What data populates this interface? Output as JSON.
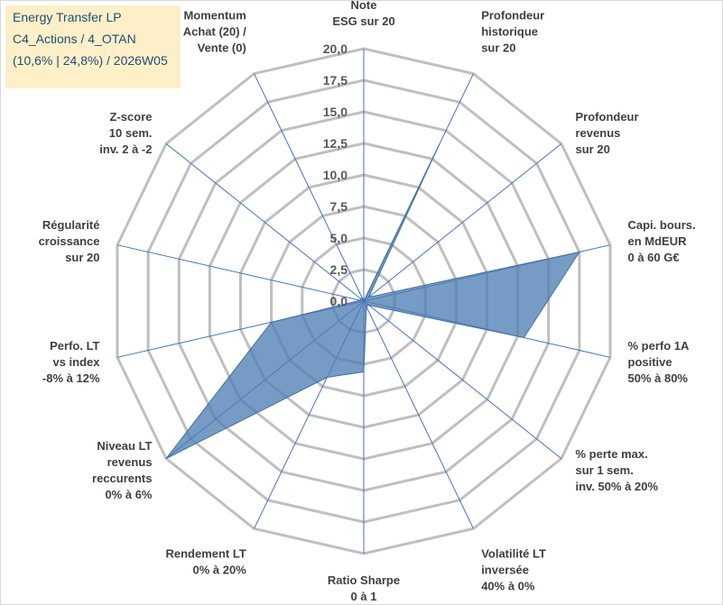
{
  "title_box": {
    "line1": "Energy Transfer LP",
    "line2": "C4_Actions / 4_OTAN",
    "line3": "(10,6% | 24,8%) / 2026W05"
  },
  "chart_data": {
    "type": "radar",
    "title": "Energy Transfer LP",
    "ylim": [
      0,
      20
    ],
    "tick_step": 2.5,
    "tick_labels": [
      "0,0",
      "2,5",
      "5,0",
      "7,5",
      "10,0",
      "12,5",
      "15,0",
      "17,5",
      "20,0"
    ],
    "categories": [
      [
        "Note",
        "ESG sur 20"
      ],
      [
        "Profondeur",
        "historique",
        "sur 20"
      ],
      [
        "Profondeur",
        "revenus",
        "sur 20"
      ],
      [
        "Capi. bours.",
        "en MdEUR",
        "0 à 60 G€"
      ],
      [
        "% perfo 1A",
        "positive",
        "50% à 80%"
      ],
      [
        "% perte max.",
        "sur 1 sem.",
        "inv. 50% à 20%"
      ],
      [
        "Volatilité LT",
        "inversée",
        "40% à 0%"
      ],
      [
        "Ratio Sharpe",
        "0 à 1"
      ],
      [
        "Rendement LT",
        "0% à 20%"
      ],
      [
        "Niveau LT",
        "revenus",
        "reccurents",
        "0% à 6%"
      ],
      [
        "Perfo. LT",
        "vs index",
        "-8% à 12%"
      ],
      [
        "Régularité",
        "croissance",
        "sur 20"
      ],
      [
        "Z-score",
        "10 sem.",
        "inv. 2 à -2"
      ],
      [
        "Momentum",
        "Achat (20) /",
        "Vente (0)"
      ]
    ],
    "series": [
      {
        "name": "Energy Transfer LP",
        "values": [
          0,
          13.8,
          0.5,
          17.5,
          13.0,
          0.5,
          0.5,
          5.6,
          6.7,
          20.0,
          7.5,
          0.3,
          0.3,
          0.3
        ]
      }
    ]
  }
}
